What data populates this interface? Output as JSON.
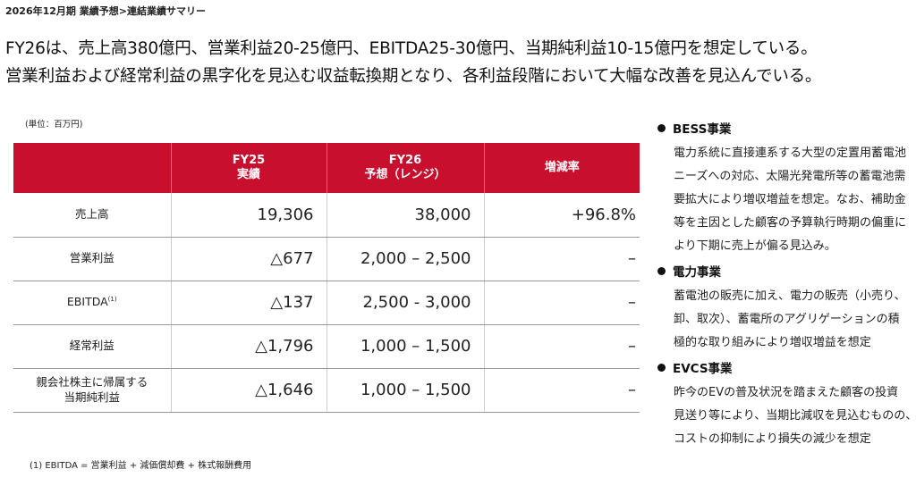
{
  "breadcrumb": "2026年12月期 業績予想>連結業績サマリー",
  "headline": {
    "line1": "FY26は、売上高380億円、営業利益20-25億円、EBITDA25-30億円、当期純利益10-15億円を想定している。",
    "line2": "営業利益および経常利益の黒字化を見込む収益転換期となり、各利益段階において大幅な改善を見込んでいる。"
  },
  "unit_note": "(単位：百万円)",
  "table": {
    "headers": [
      {
        "line1": "",
        "line2": ""
      },
      {
        "line1": "FY25",
        "line2": "実績"
      },
      {
        "line1": "FY26",
        "line2": "予想（レンジ）"
      },
      {
        "line1": "増減率",
        "line2": ""
      }
    ],
    "rows": [
      {
        "label": "売上高",
        "label2": "",
        "fy25": "19,306",
        "fy26": "38,000",
        "rate": "+96.8%"
      },
      {
        "label": "営業利益",
        "label2": "",
        "fy25": "△677",
        "fy26": "2,000 – 2,500",
        "rate": "–"
      },
      {
        "label": "EBITDA",
        "label2": "",
        "note": "(1)",
        "fy25": "△137",
        "fy26": "2,500 - 3,000",
        "rate": "–"
      },
      {
        "label": "経常利益",
        "label2": "",
        "fy25": "△1,796",
        "fy26": "1,000 – 1,500",
        "rate": "–"
      },
      {
        "label": "親会社株主に帰属する",
        "label2": "当期純利益",
        "fy25": "△1,646",
        "fy26": "1,000 – 1,500",
        "rate": "–"
      }
    ]
  },
  "footnote": "(1) EBITDA = 営業利益 + 減価償却費 + 株式報酬費用",
  "segments": [
    {
      "title": "BESS事業",
      "lines": [
        "電力系統に直接連系する大型の定置用蓄電池",
        "ニーズへの対応、太陽光発電所等の蓄電池需",
        "要拡大により増収増益を想定。なお、補助金",
        "等を主因とした顧客の予算執行時期の偏重に",
        "より下期に売上が偏る見込み。"
      ]
    },
    {
      "title": "電力事業",
      "lines": [
        "蓄電池の販売に加え、電力の販売（小売り、",
        "卸、取次）、蓄電所のアグリゲーションの積",
        "極的な取り組みにより増収増益を想定"
      ]
    },
    {
      "title": "EVCS事業",
      "lines": [
        "昨今のEVの普及状況を踏まえた顧客の投資",
        "見送り等により、当期比減収を見込むものの、",
        "コストの抑制により損失の減少を想定"
      ]
    }
  ],
  "colors": {
    "header_red": "#c8102e",
    "text": "#222222"
  }
}
